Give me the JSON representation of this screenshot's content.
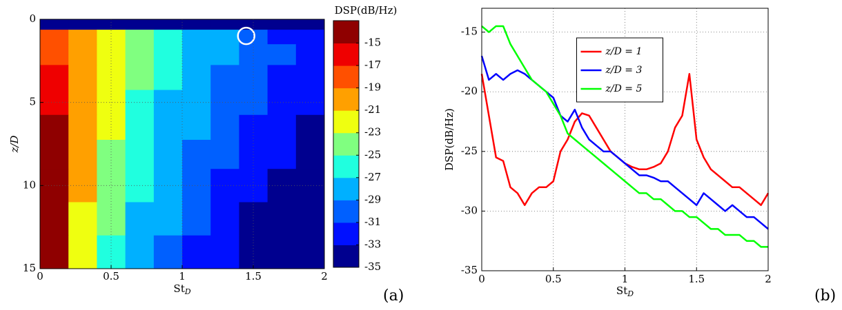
{
  "chart_data": [
    {
      "type": "contour",
      "panel_label": "(a)",
      "xlabel": "St",
      "xlabel_sub": "D",
      "ylabel": "z/D",
      "xlim": [
        0,
        2
      ],
      "xticks": [
        0,
        0.5,
        1,
        1.5,
        2
      ],
      "ylim": [
        0,
        15
      ],
      "yticks": [
        0,
        5,
        10,
        15
      ],
      "y_reversed": true,
      "grid": true,
      "x": [
        0.1,
        0.3,
        0.5,
        0.7,
        0.9,
        1.1,
        1.3,
        1.5,
        1.7,
        1.9
      ],
      "y": [
        0.25,
        1,
        2,
        3.5,
        5,
        6.5,
        8,
        10,
        12,
        14
      ],
      "values": [
        [
          -35,
          -35,
          -35,
          -35,
          -35,
          -35,
          -35,
          -35,
          -35,
          -35
        ],
        [
          -18,
          -20,
          -22,
          -25,
          -27,
          -28,
          -29,
          -30,
          -32,
          -33
        ],
        [
          -18,
          -20,
          -23,
          -25,
          -27,
          -28,
          -29,
          -30,
          -31,
          -32
        ],
        [
          -17,
          -20,
          -23,
          -25,
          -27,
          -29,
          -30,
          -31,
          -32,
          -33
        ],
        [
          -16,
          -20,
          -23,
          -26,
          -28,
          -29,
          -30,
          -31,
          -32,
          -33
        ],
        [
          -15,
          -20,
          -23,
          -26,
          -28,
          -29,
          -31,
          -32,
          -33,
          -34
        ],
        [
          -15,
          -21,
          -24,
          -26,
          -28,
          -30,
          -31,
          -32,
          -33,
          -34
        ],
        [
          -15,
          -21,
          -24,
          -27,
          -29,
          -30,
          -32,
          -33,
          -34,
          -35
        ],
        [
          -15,
          -22,
          -25,
          -28,
          -29,
          -31,
          -33,
          -34,
          -35,
          -35
        ],
        [
          -15,
          -22,
          -26,
          -28,
          -30,
          -32,
          -33,
          -35,
          -35,
          -35
        ]
      ],
      "colorbar": {
        "title": "DSP(dB/Hz)",
        "lim": [
          -35,
          -13
        ],
        "ticks": [
          -35,
          -33,
          -31,
          -29,
          -27,
          -25,
          -23,
          -21,
          -19,
          -17,
          -15
        ],
        "colors": [
          "#00008f",
          "#0010ff",
          "#0060ff",
          "#00b0ff",
          "#20ffdf",
          "#80ff80",
          "#efff10",
          "#ffa000",
          "#ff5000",
          "#ef0000",
          "#8f0000"
        ]
      }
    },
    {
      "type": "line",
      "panel_label": "(b)",
      "xlabel": "St",
      "xlabel_sub": "D",
      "ylabel": "DSP(dB/Hz)",
      "xlim": [
        0,
        2
      ],
      "xticks": [
        0,
        0.5,
        1,
        1.5,
        2
      ],
      "ylim": [
        -35,
        -13
      ],
      "yticks": [
        -35,
        -30,
        -25,
        -20,
        -15
      ],
      "grid": true,
      "legend": "top-center",
      "x": [
        0,
        0.05,
        0.1,
        0.15,
        0.2,
        0.25,
        0.3,
        0.35,
        0.4,
        0.45,
        0.5,
        0.55,
        0.6,
        0.65,
        0.7,
        0.75,
        0.8,
        0.85,
        0.9,
        0.95,
        1,
        1.05,
        1.1,
        1.15,
        1.2,
        1.25,
        1.3,
        1.35,
        1.4,
        1.45,
        1.5,
        1.55,
        1.6,
        1.65,
        1.7,
        1.75,
        1.8,
        1.85,
        1.9,
        1.95,
        2
      ],
      "series": [
        {
          "name": "z/D = 1",
          "color": "#ff0000",
          "values": [
            -18.5,
            -22,
            -25.5,
            -25.8,
            -28,
            -28.5,
            -29.5,
            -28.5,
            -28,
            -28,
            -27.5,
            -25,
            -24,
            -22.5,
            -21.8,
            -22,
            -23,
            -24,
            -25,
            -25.5,
            -26,
            -26.3,
            -26.5,
            -26.5,
            -26.3,
            -26,
            -25,
            -23,
            -22,
            -18.5,
            -24,
            -25.5,
            -26.5,
            -27,
            -27.5,
            -28,
            -28,
            -28.5,
            -29,
            -29.5,
            -28.5
          ]
        },
        {
          "name": "z/D = 3",
          "color": "#0000ff",
          "values": [
            -17,
            -19,
            -18.5,
            -19,
            -18.5,
            -18.2,
            -18.5,
            -19,
            -19.5,
            -20,
            -20.5,
            -22,
            -22.5,
            -21.5,
            -23,
            -24,
            -24.5,
            -25,
            -25,
            -25.5,
            -26,
            -26.5,
            -27,
            -27,
            -27.2,
            -27.5,
            -27.5,
            -28,
            -28.5,
            -29,
            -29.5,
            -28.5,
            -29,
            -29.5,
            -30,
            -29.5,
            -30,
            -30.5,
            -30.5,
            -31,
            -31.5
          ]
        },
        {
          "name": "z/D = 5",
          "color": "#00ff00",
          "values": [
            -14.5,
            -15,
            -14.5,
            -14.5,
            -16,
            -17,
            -18,
            -19,
            -19.5,
            -20,
            -21,
            -22,
            -23.5,
            -24,
            -24.5,
            -25,
            -25.5,
            -26,
            -26.5,
            -27,
            -27.5,
            -28,
            -28.5,
            -28.5,
            -29,
            -29,
            -29.5,
            -30,
            -30,
            -30.5,
            -30.5,
            -31,
            -31.5,
            -31.5,
            -32,
            -32,
            -32,
            -32.5,
            -32.5,
            -33,
            -33
          ]
        }
      ]
    }
  ]
}
